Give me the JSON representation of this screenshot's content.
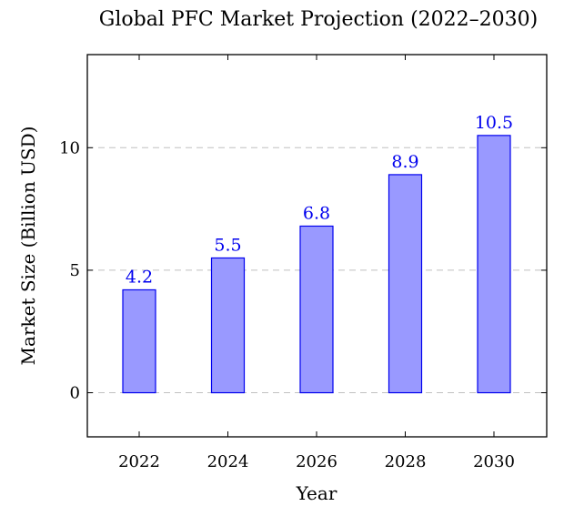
{
  "chart_data": {
    "type": "bar",
    "title": "Global PFC Market Projection (2022–2030)",
    "xlabel": "Year",
    "ylabel": "Market Size (Billion USD)",
    "categories": [
      "2022",
      "2024",
      "2026",
      "2028",
      "2030"
    ],
    "values": [
      4.2,
      5.5,
      6.8,
      8.9,
      10.5
    ],
    "value_labels": [
      "4.2",
      "5.5",
      "6.8",
      "8.9",
      "10.5"
    ],
    "ylim": [
      -1.8,
      13.8
    ],
    "yticks": [
      0,
      5,
      10
    ],
    "ytick_labels": [
      "0",
      "5",
      "10"
    ],
    "grid": "horizontal dashed at y ticks",
    "colors": {
      "bar_fill": "#9999ff",
      "bar_stroke": "#0000ee",
      "data_label": "#0000ee",
      "grid": "#c0c0c0",
      "frame": "#000000"
    }
  }
}
